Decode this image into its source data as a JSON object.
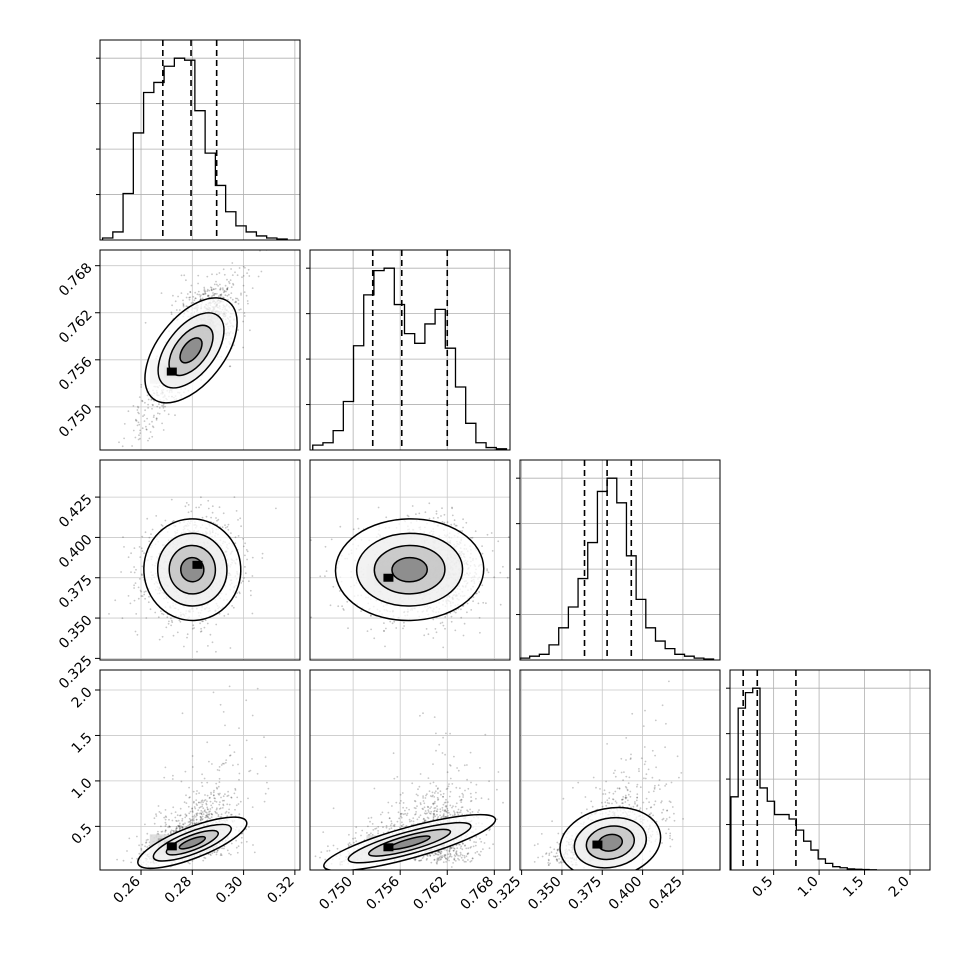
{
  "chart_data": {
    "type": "corner",
    "params": [
      {
        "range": [
          0.244,
          0.322
        ],
        "bins": [
          0.247,
          0.251,
          0.255,
          0.259,
          0.263,
          0.267,
          0.271,
          0.275,
          0.279,
          0.283,
          0.287,
          0.291,
          0.295,
          0.299,
          0.303,
          0.307,
          0.311,
          0.315
        ],
        "counts": [
          1,
          4,
          23,
          53,
          73,
          78,
          86,
          90,
          89,
          64,
          43,
          27,
          14,
          7,
          4,
          2,
          1,
          0.5
        ],
        "quantiles": [
          0.2685,
          0.2795,
          0.2895
        ],
        "ticks": [
          0.26,
          0.28,
          0.3,
          0.32
        ],
        "tick_labels": [
          "0.26",
          "0.28",
          "0.30",
          "0.32"
        ]
      },
      {
        "range": [
          0.7445,
          0.77
        ],
        "bins": [
          0.7455,
          0.7468,
          0.7481,
          0.7494,
          0.7507,
          0.752,
          0.7533,
          0.7546,
          0.7559,
          0.7572,
          0.7585,
          0.7598,
          0.7611,
          0.7624,
          0.7637,
          0.765,
          0.7663,
          0.7676,
          0.7689
        ],
        "counts": [
          2,
          3,
          8,
          20,
          43,
          64,
          74,
          75,
          60,
          48,
          44,
          52,
          58,
          42,
          26,
          11,
          3,
          1,
          0.5
        ],
        "quantiles": [
          0.7525,
          0.7562,
          0.762
        ],
        "ticks": [
          0.75,
          0.756,
          0.762,
          0.768
        ],
        "tick_labels": [
          "0.750",
          "0.756",
          "0.762",
          "0.768"
        ]
      },
      {
        "range": [
          0.324,
          0.448
        ],
        "bins": [
          0.327,
          0.333,
          0.339,
          0.345,
          0.351,
          0.357,
          0.363,
          0.369,
          0.375,
          0.381,
          0.387,
          0.393,
          0.399,
          0.405,
          0.411,
          0.417,
          0.423,
          0.429,
          0.435,
          0.441
        ],
        "counts": [
          1,
          2,
          3,
          8,
          17,
          28,
          43,
          62,
          89,
          96,
          83,
          55,
          32,
          17,
          10,
          6,
          3,
          2,
          1,
          0.5
        ],
        "quantiles": [
          0.364,
          0.378,
          0.393
        ],
        "ticks": [
          0.325,
          0.35,
          0.375,
          0.4,
          0.425
        ],
        "tick_labels": [
          "0.325",
          "0.350",
          "0.375",
          "0.400",
          "0.425"
        ]
      },
      {
        "range": [
          0.02,
          2.22
        ],
        "bins": [
          0.07,
          0.15,
          0.23,
          0.31,
          0.39,
          0.47,
          0.55,
          0.63,
          0.71,
          0.79,
          0.87,
          0.95,
          1.03,
          1.11,
          1.19,
          1.27,
          1.35,
          1.43,
          1.51,
          1.59
        ],
        "counts": [
          33,
          73,
          80,
          82,
          37,
          31,
          25,
          25,
          23,
          18,
          13,
          9,
          5,
          3,
          1.5,
          1,
          0.5,
          0.3,
          0.2,
          0.1
        ],
        "quantiles": [
          0.165,
          0.32,
          0.745
        ],
        "ticks": [
          0.5,
          1.0,
          1.5,
          2.0
        ],
        "tick_labels": [
          "0.5",
          "1.0",
          "1.5",
          "2.0"
        ]
      }
    ],
    "pairs": [
      {
        "row": 1,
        "col": 0,
        "mean": [
          0.2795,
          0.7572
        ],
        "sd": [
          0.0095,
          0.0045
        ],
        "rho": 0.88,
        "density_peak": [
          0.272,
          0.7545
        ]
      },
      {
        "row": 2,
        "col": 0,
        "mean": [
          0.28,
          0.38
        ],
        "sd": [
          0.009,
          0.015
        ],
        "rho": 0.1,
        "density_peak": [
          0.282,
          0.383
        ]
      },
      {
        "row": 2,
        "col": 1,
        "mean": [
          0.7572,
          0.38
        ],
        "sd": [
          0.0045,
          0.015
        ],
        "rho": 0.05,
        "density_peak": [
          0.7545,
          0.375
        ]
      },
      {
        "row": 3,
        "col": 0,
        "mean": [
          0.28,
          0.4
        ],
        "sd": [
          0.009,
          0.25
        ],
        "rho": 0.55,
        "density_peak": [
          0.272,
          0.28
        ]
      },
      {
        "row": 3,
        "col": 1,
        "mean": [
          0.7572,
          0.4
        ],
        "sd": [
          0.0045,
          0.25
        ],
        "rho": 0.6,
        "density_peak": [
          0.7545,
          0.27
        ]
      },
      {
        "row": 3,
        "col": 2,
        "mean": [
          0.38,
          0.4
        ],
        "sd": [
          0.015,
          0.25
        ],
        "rho": 0.5,
        "density_peak": [
          0.372,
          0.3
        ]
      }
    ],
    "grid": true,
    "xlabel": "",
    "ylabel": ""
  }
}
